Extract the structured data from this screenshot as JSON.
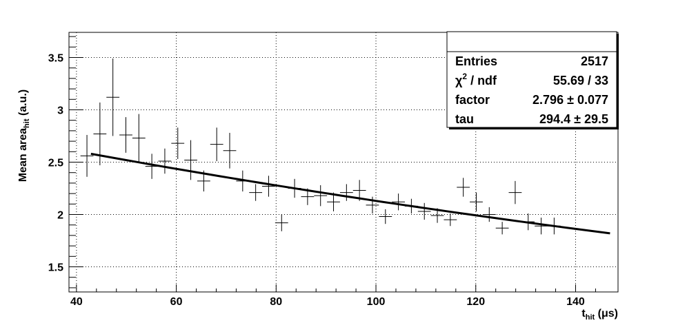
{
  "chart_data": {
    "type": "scatter",
    "xlabel": "t",
    "xlabel_sub": "hit",
    "xlabel_unit": " (μs)",
    "ylabel": "Mean area",
    "ylabel_sub": "hit",
    "ylabel_unit": " (a.u.)",
    "xlim": [
      38.5,
      148.5
    ],
    "ylim": [
      1.26,
      3.74
    ],
    "x_ticks": [
      "40",
      "60",
      "80",
      "100",
      "120",
      "140"
    ],
    "x_tick_values": [
      40,
      60,
      80,
      100,
      120,
      140
    ],
    "y_ticks": [
      "1.5",
      "2",
      "2.5",
      "3",
      "3.5"
    ],
    "y_tick_values": [
      1.5,
      2,
      2.5,
      3,
      3.5
    ],
    "grid": true,
    "bin_half_width": 1.3,
    "series": [
      {
        "type": "errorbar",
        "x": [
          42.1,
          44.7,
          47.3,
          49.9,
          52.5,
          55.1,
          57.7,
          60.3,
          62.9,
          65.5,
          68.1,
          70.7,
          73.3,
          75.9,
          78.5,
          81.1,
          83.7,
          86.3,
          88.9,
          91.5,
          94.1,
          96.7,
          99.3,
          101.9,
          104.5,
          107.1,
          109.7,
          112.3,
          114.9,
          117.5,
          120.1,
          122.7,
          125.3,
          127.9,
          130.5,
          133.1,
          135.7
        ],
        "y": [
          2.56,
          2.77,
          3.12,
          2.76,
          2.73,
          2.46,
          2.51,
          2.68,
          2.52,
          2.32,
          2.67,
          2.61,
          2.32,
          2.21,
          2.27,
          1.92,
          2.25,
          2.17,
          2.18,
          2.12,
          2.21,
          2.23,
          2.09,
          1.98,
          2.12,
          2.08,
          2.03,
          1.99,
          1.95,
          2.26,
          2.12,
          2.0,
          1.87,
          2.21,
          1.93,
          1.89,
          1.89
        ],
        "yerr": [
          0.2,
          0.3,
          0.37,
          0.17,
          0.23,
          0.12,
          0.12,
          0.15,
          0.19,
          0.1,
          0.16,
          0.17,
          0.1,
          0.08,
          0.1,
          0.08,
          0.09,
          0.08,
          0.1,
          0.09,
          0.08,
          0.1,
          0.08,
          0.07,
          0.08,
          0.07,
          0.08,
          0.07,
          0.06,
          0.09,
          0.09,
          0.07,
          0.06,
          0.11,
          0.08,
          0.08,
          0.08
        ]
      },
      {
        "type": "line",
        "function": "exponential",
        "x": [
          42.9,
          146.9
        ],
        "y": [
          2.58,
          1.82
        ]
      }
    ],
    "stats_box": {
      "rows": [
        {
          "label": "Entries",
          "value": "2517"
        },
        {
          "label": "χ",
          "sup": "2",
          "label_rest": " / ndf",
          "value": "55.69 / 33"
        },
        {
          "label": "factor",
          "value": "2.796 ± 0.077"
        },
        {
          "label": "tau",
          "value": "294.4 ± 29.5"
        }
      ]
    }
  }
}
